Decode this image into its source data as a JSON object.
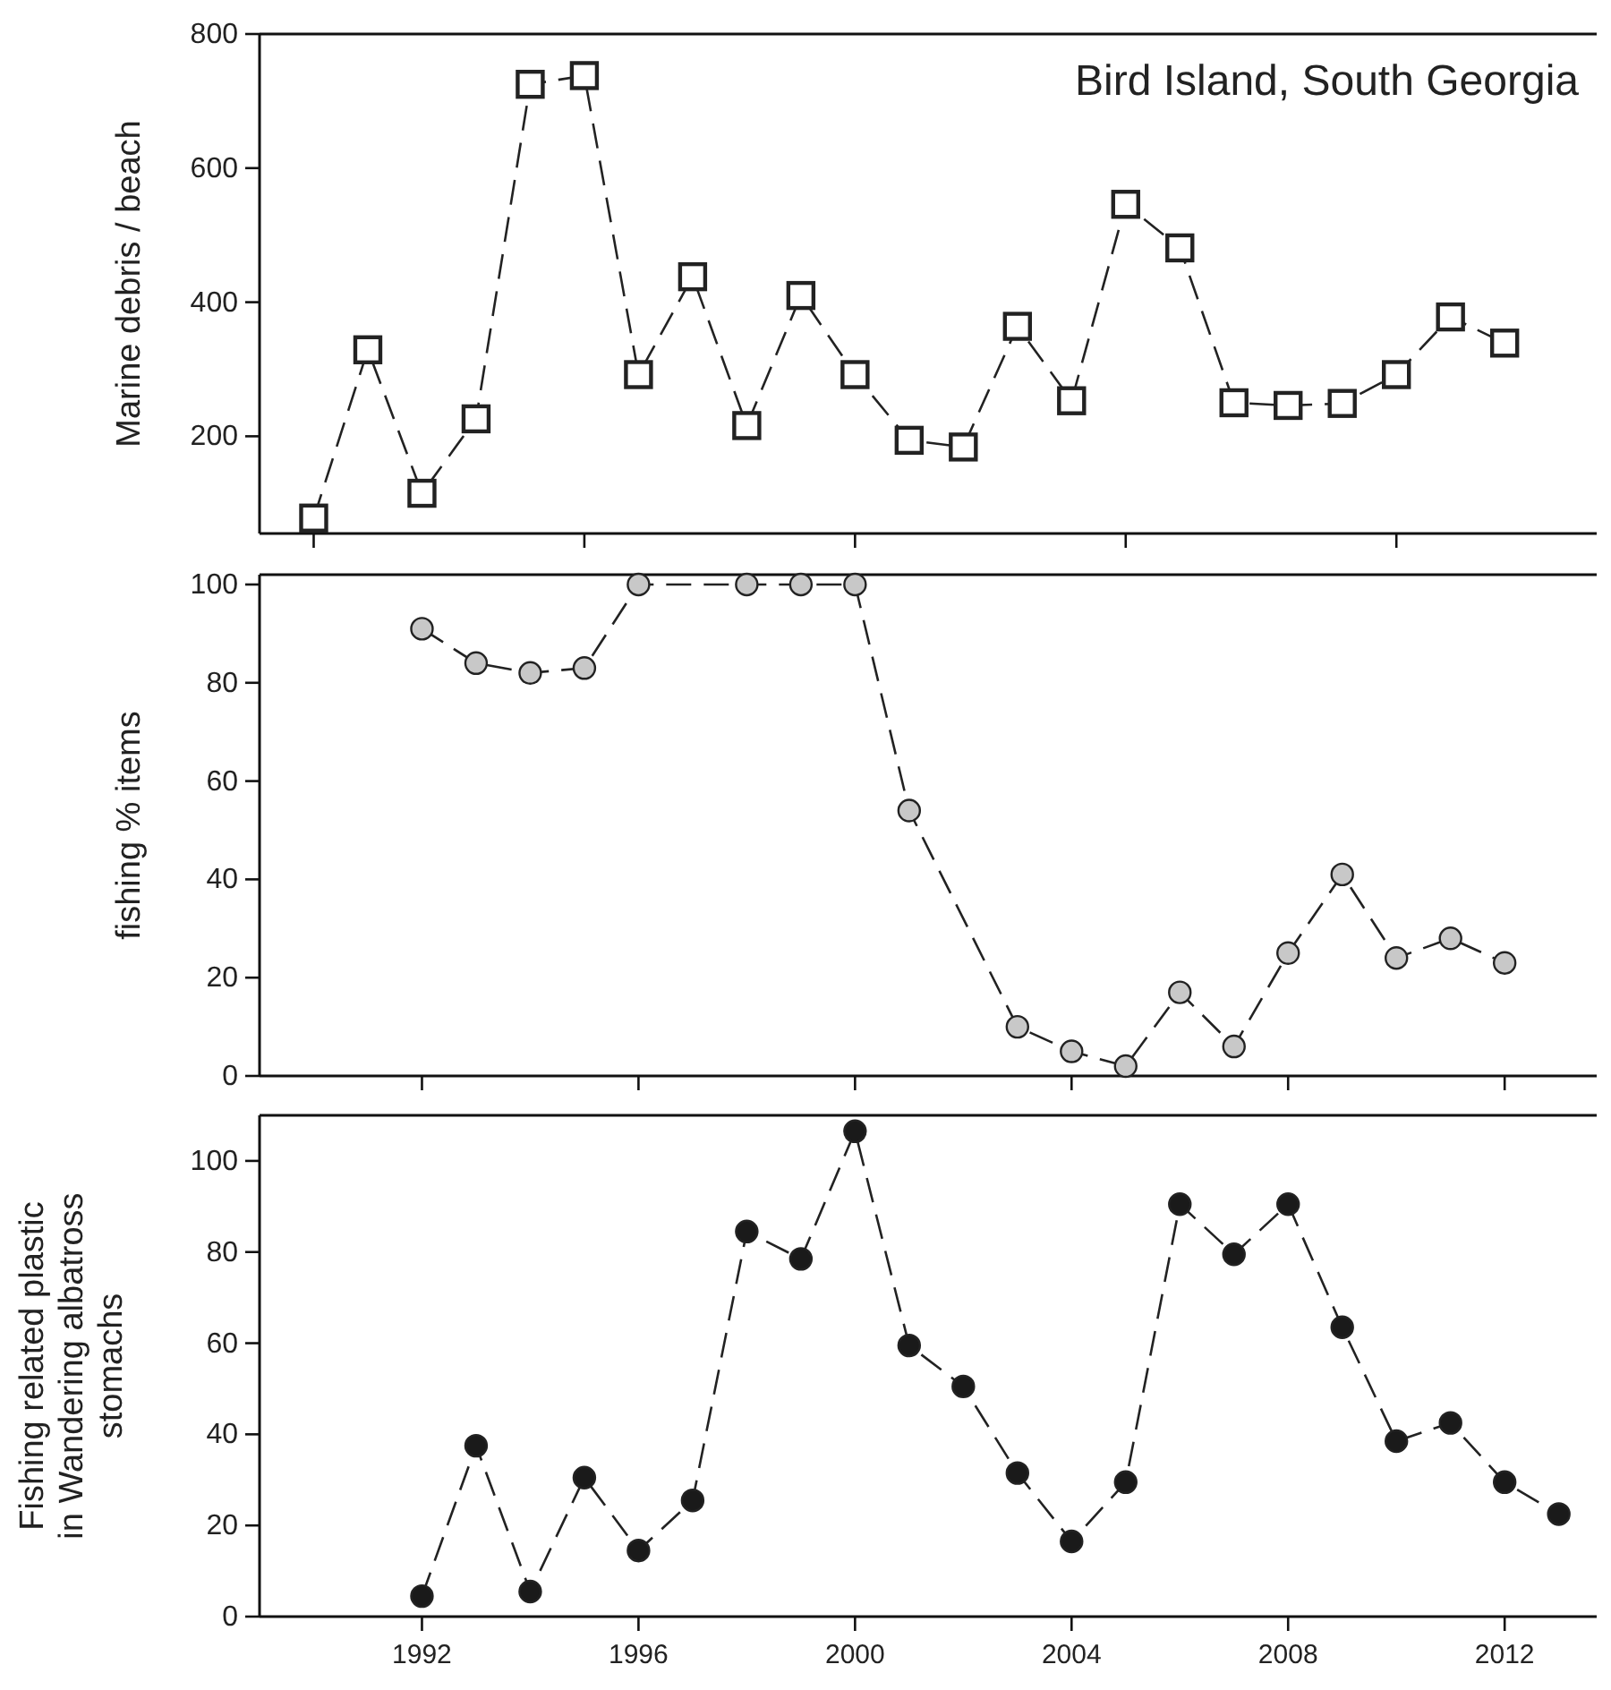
{
  "chart_data": [
    {
      "type": "line",
      "ylabel": "Marine debris / beach",
      "annotations": [
        "Bird Island, South Georgia"
      ],
      "xlim": [
        1989,
        2013.7
      ],
      "xticks": [
        {
          "value": 1990,
          "label": null
        },
        {
          "value": 1995,
          "label": null
        },
        {
          "value": 2000,
          "label": null
        },
        {
          "value": 2005,
          "label": null
        },
        {
          "value": 2010,
          "label": null
        }
      ],
      "ylim": [
        55,
        800
      ],
      "yticks": [
        200,
        400,
        600,
        800
      ],
      "tick_labels": "y",
      "marker": "square",
      "line_style": "dashed",
      "series": [
        {
          "color": "#ffffff",
          "x": [
            1990,
            1991,
            1992,
            1993,
            1994,
            1995,
            1996,
            1997,
            1998,
            1999,
            2000,
            2001,
            2002,
            2003,
            2004,
            2005,
            2006,
            2007,
            2008,
            2009,
            2010,
            2011,
            2012
          ],
          "values": [
            78,
            329,
            115,
            226,
            725,
            738,
            292,
            438,
            216,
            410,
            292,
            194,
            184,
            364,
            253,
            546,
            481,
            250,
            246,
            249,
            292,
            378,
            339
          ]
        }
      ]
    },
    {
      "type": "line",
      "ylabel": "fishing % items",
      "xlim": [
        1989,
        2013.7
      ],
      "xticks": [
        {
          "value": 1992,
          "label": null
        },
        {
          "value": 1996,
          "label": null
        },
        {
          "value": 2000,
          "label": null
        },
        {
          "value": 2004,
          "label": null
        },
        {
          "value": 2008,
          "label": null
        },
        {
          "value": 2012,
          "label": null
        }
      ],
      "ylim": [
        0,
        102
      ],
      "yticks": [
        0,
        20,
        40,
        60,
        80,
        100
      ],
      "tick_labels": "y",
      "marker": "circle",
      "line_style": "dashed",
      "series": [
        {
          "color": "#c8c8c8",
          "x": [
            1992,
            1993,
            1994,
            1995,
            1996,
            1998,
            1999,
            2000,
            2001,
            2003,
            2004,
            2005,
            2006,
            2007,
            2008,
            2009,
            2010,
            2011,
            2012
          ],
          "values": [
            91,
            84,
            82,
            83,
            100,
            100,
            100,
            100,
            54,
            10,
            5,
            2,
            17,
            6,
            25,
            41,
            24,
            28,
            23
          ]
        }
      ]
    },
    {
      "type": "line",
      "ylabel": "Fishing related plastic\nin Wandering albatross\nstomachs",
      "xlim": [
        1989,
        2013.7
      ],
      "xticks": [
        1992,
        1996,
        2000,
        2004,
        2008,
        2012
      ],
      "ylim": [
        0,
        110
      ],
      "yticks": [
        0,
        20,
        40,
        60,
        80,
        100
      ],
      "marker": "circle",
      "line_style": "dashed",
      "series": [
        {
          "color": "#1a1a1a",
          "x": [
            1992,
            1993,
            1994,
            1995,
            1996,
            1997,
            1998,
            1999,
            2000,
            2001,
            2002,
            2003,
            2004,
            2005,
            2006,
            2007,
            2008,
            2009,
            2010,
            2011,
            2012,
            2013
          ],
          "values": [
            4.5,
            37.5,
            5.5,
            30.5,
            14.5,
            25.5,
            84.5,
            78.5,
            106.5,
            59.5,
            50.5,
            31.5,
            16.5,
            29.5,
            90.5,
            79.5,
            90.5,
            63.5,
            38.5,
            42.5,
            29.5,
            22.5
          ]
        }
      ]
    }
  ]
}
